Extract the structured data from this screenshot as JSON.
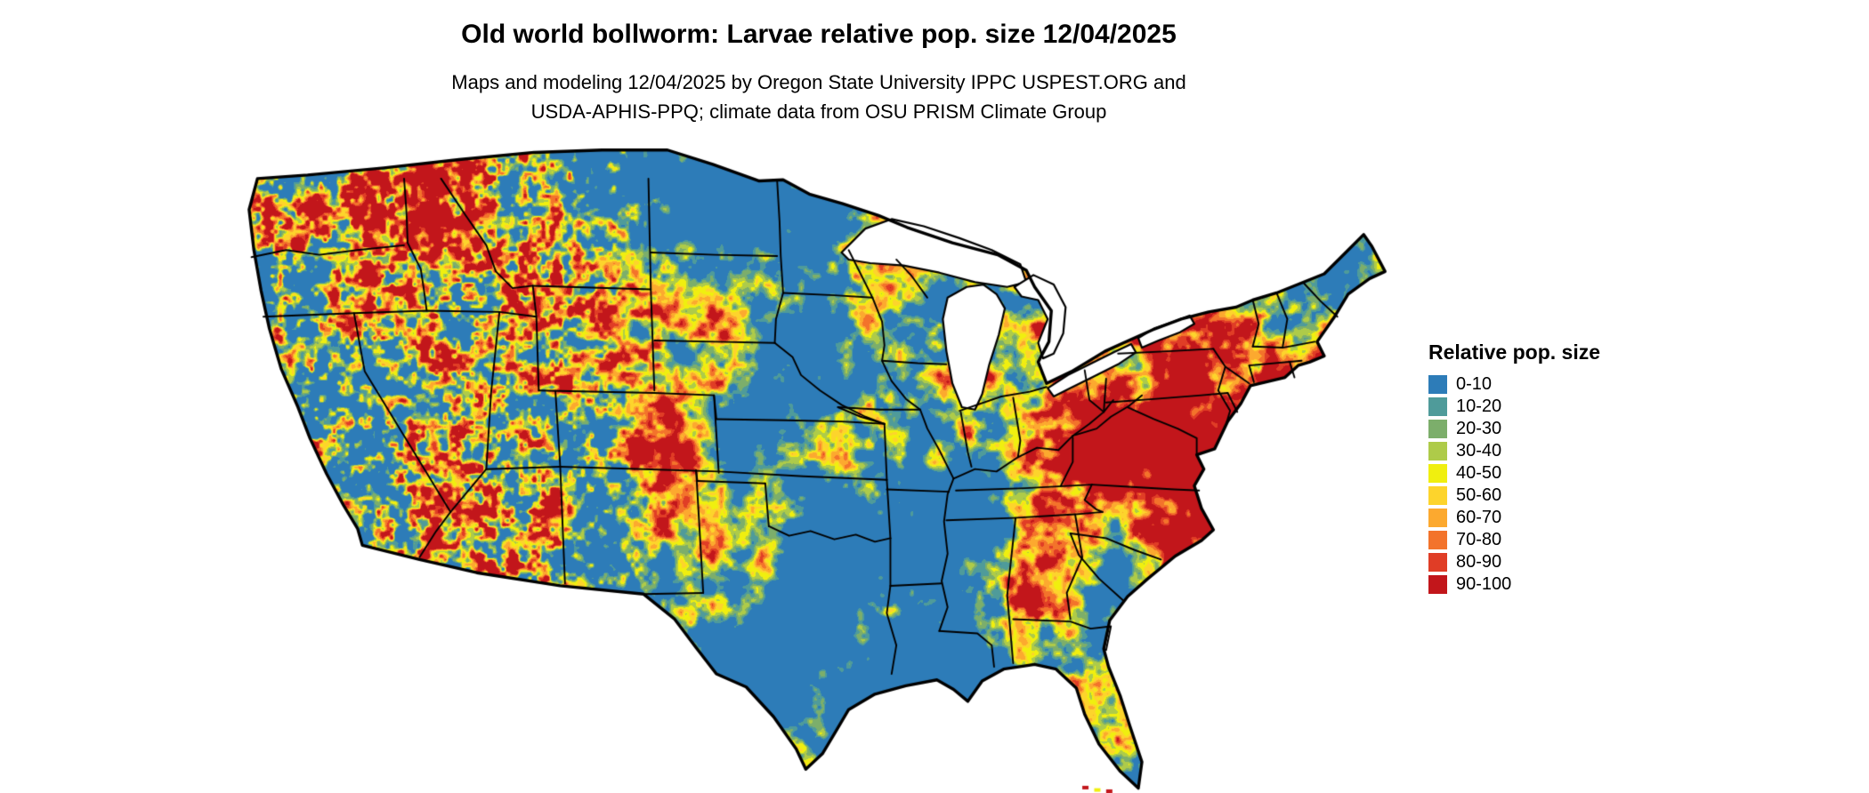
{
  "title": "Old world bollworm: Larvae relative pop. size 12/04/2025",
  "subtitle_line1": "Maps and modeling 12/04/2025 by Oregon State University IPPC USPEST.ORG and",
  "subtitle_line2": "USDA-APHIS-PPQ; climate data from OSU PRISM Climate Group",
  "legend": {
    "title": "Relative pop. size",
    "items": [
      {
        "label": "0-10",
        "color": "#2d7cb8"
      },
      {
        "label": "10-20",
        "color": "#4f9b9a"
      },
      {
        "label": "20-30",
        "color": "#7cae6b"
      },
      {
        "label": "30-40",
        "color": "#aecb49"
      },
      {
        "label": "40-50",
        "color": "#f0ef0f"
      },
      {
        "label": "50-60",
        "color": "#fdd42c"
      },
      {
        "label": "60-70",
        "color": "#fca92f"
      },
      {
        "label": "70-80",
        "color": "#f3732b"
      },
      {
        "label": "80-90",
        "color": "#e03d26"
      },
      {
        "label": "90-100",
        "color": "#c2161b"
      }
    ]
  },
  "map": {
    "region_label": "Continental United States",
    "value_kind": "Larvae relative population size (0-100)"
  }
}
